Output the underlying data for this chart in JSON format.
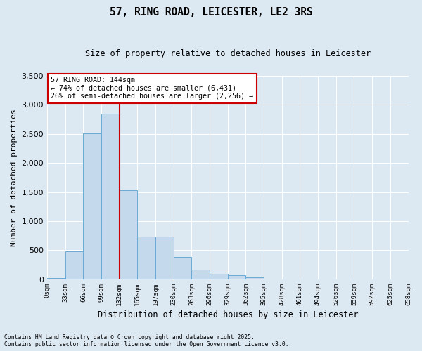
{
  "title": "57, RING ROAD, LEICESTER, LE2 3RS",
  "subtitle": "Size of property relative to detached houses in Leicester",
  "xlabel": "Distribution of detached houses by size in Leicester",
  "ylabel": "Number of detached properties",
  "bin_labels": [
    "0sqm",
    "33sqm",
    "66sqm",
    "99sqm",
    "132sqm",
    "165sqm",
    "197sqm",
    "230sqm",
    "263sqm",
    "296sqm",
    "329sqm",
    "362sqm",
    "395sqm",
    "428sqm",
    "461sqm",
    "494sqm",
    "526sqm",
    "559sqm",
    "592sqm",
    "625sqm",
    "658sqm"
  ],
  "bar_values": [
    20,
    480,
    2510,
    2840,
    1530,
    730,
    730,
    390,
    165,
    100,
    75,
    30,
    0,
    0,
    0,
    0,
    0,
    0,
    0,
    0
  ],
  "bar_color": "#c5d9ed",
  "bar_edge_color": "#6aaad4",
  "vline_x": 4,
  "property_line_label": "57 RING ROAD: 144sqm",
  "annotation_line1": "← 74% of detached houses are smaller (6,431)",
  "annotation_line2": "26% of semi-detached houses are larger (2,256) →",
  "annotation_box_color": "#ffffff",
  "annotation_box_edge_color": "#cc0000",
  "vline_color": "#cc0000",
  "ylim": [
    0,
    3500
  ],
  "yticks": [
    0,
    500,
    1000,
    1500,
    2000,
    2500,
    3000,
    3500
  ],
  "bg_color": "#dce8f2",
  "grid_color": "#ffffff",
  "footnote1": "Contains HM Land Registry data © Crown copyright and database right 2025.",
  "footnote2": "Contains public sector information licensed under the Open Government Licence v3.0."
}
